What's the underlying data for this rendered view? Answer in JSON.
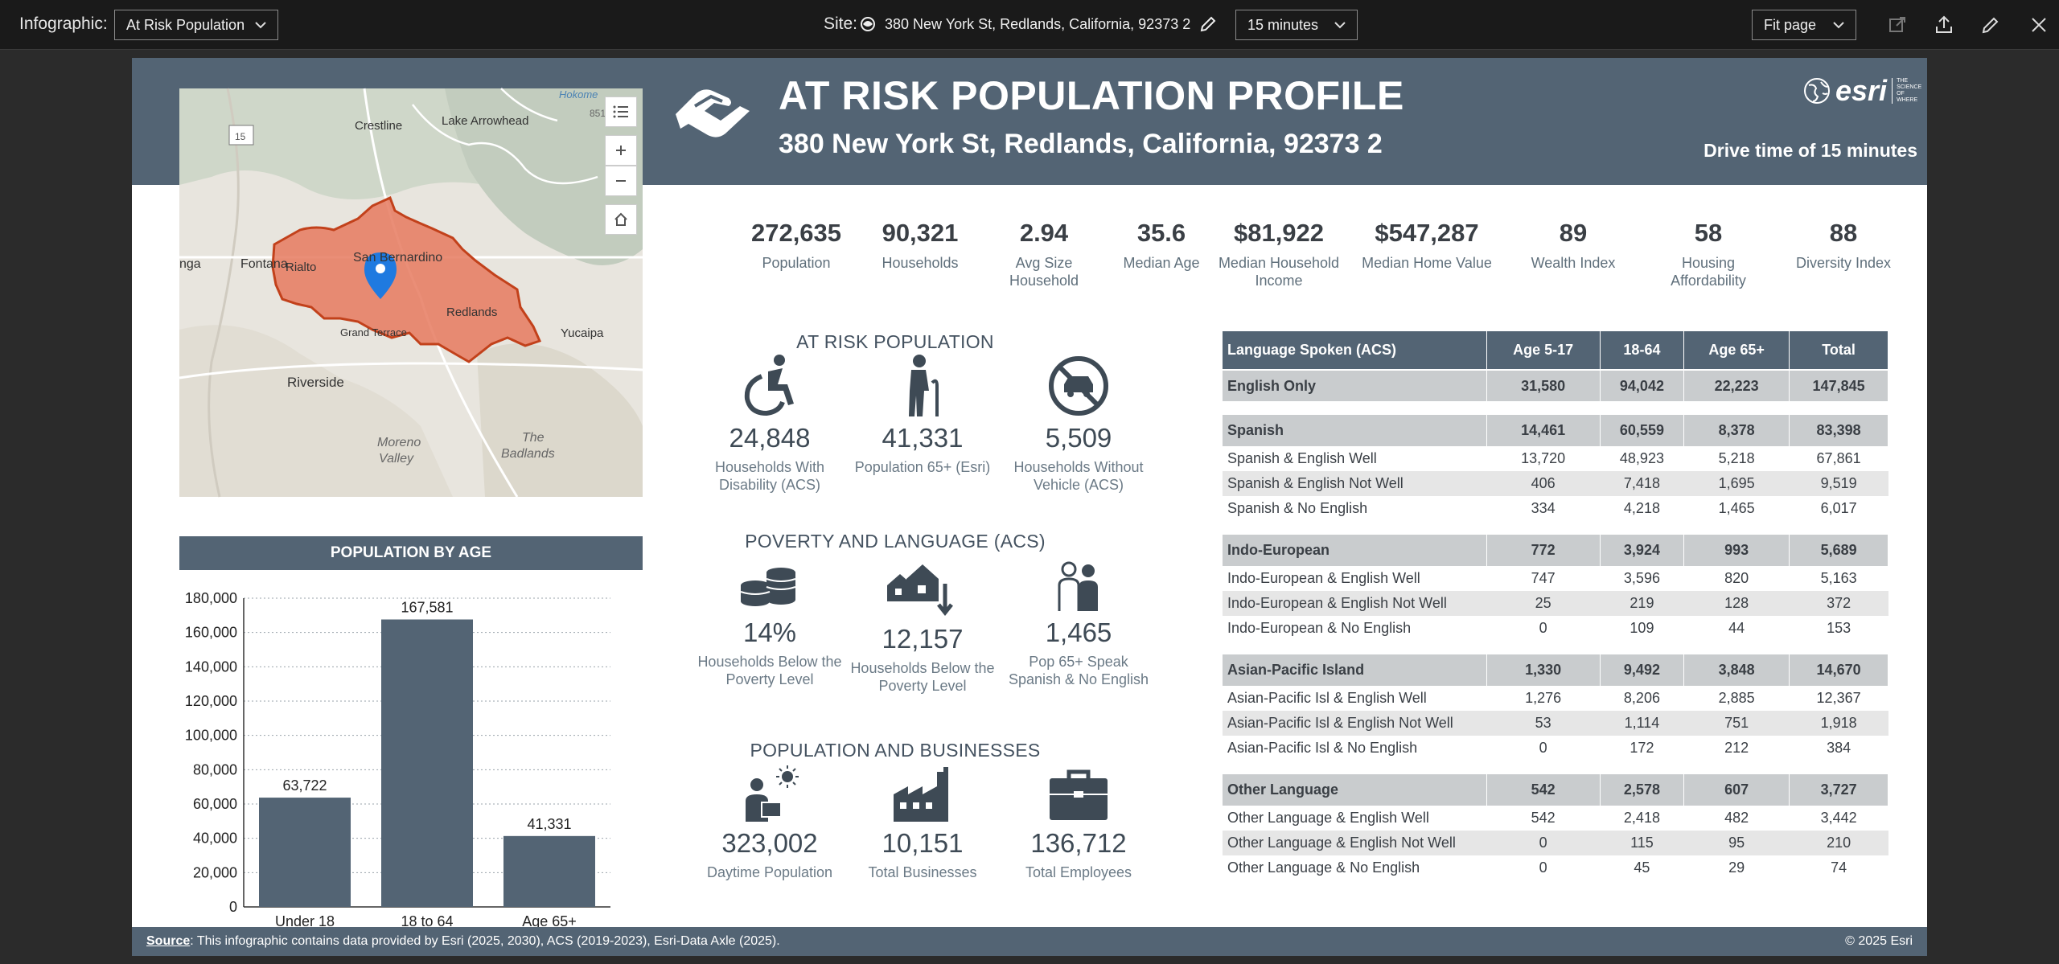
{
  "toolbar": {
    "infographic_label": "Infographic:",
    "infographic_value": "At Risk Population",
    "site_label": "Site:",
    "site_value": "380 New York St, Redlands, California, 92373 2",
    "drive_value": "15 minutes",
    "zoom_value": "Fit page"
  },
  "header": {
    "title": "AT RISK POPULATION PROFILE",
    "address": "380 New York St, Redlands, California, 92373 2",
    "drive_time": "Drive time of 15 minutes",
    "logo_word": "esri",
    "logo_tag": "THE SCIENCE OF WHERE"
  },
  "map": {
    "labels": [
      "Crestline",
      "Lake Arrowhead",
      "Fontana",
      "Rialto",
      "San Bernardino",
      "Redlands",
      "Yucaipa",
      "Grand Terrace",
      "Riverside",
      "Moreno",
      "Valley",
      "The",
      "Badlands",
      "Hokome",
      "851",
      "nga",
      "15"
    ]
  },
  "stats": [
    {
      "value": "272,635",
      "label": "Population"
    },
    {
      "value": "90,321",
      "label": "Households"
    },
    {
      "value": "2.94",
      "label": "Avg Size Household"
    },
    {
      "value": "35.6",
      "label": "Median Age"
    },
    {
      "value": "$81,922",
      "label": "Median Household Income"
    },
    {
      "value": "$547,287",
      "label": "Median Home Value"
    },
    {
      "value": "89",
      "label": "Wealth Index"
    },
    {
      "value": "58",
      "label": "Housing Affordability"
    },
    {
      "value": "88",
      "label": "Diversity Index"
    }
  ],
  "at_risk": {
    "title": "AT RISK POPULATION",
    "items": [
      {
        "value": "24,848",
        "label": "Households With Disability (ACS)",
        "icon": "wheelchair-icon"
      },
      {
        "value": "41,331",
        "label": "Population 65+ (Esri)",
        "icon": "elderly-person-icon"
      },
      {
        "value": "5,509",
        "label": "Households Without Vehicle (ACS)",
        "icon": "no-car-icon"
      }
    ]
  },
  "poverty": {
    "title": "POVERTY AND LANGUAGE (ACS)",
    "items": [
      {
        "value": "14%",
        "label": "Households Below the Poverty Level",
        "icon": "coins-icon"
      },
      {
        "value": "12,157",
        "label": "Households Below the Poverty Level",
        "icon": "houses-down-icon"
      },
      {
        "value": "1,465",
        "label": "Pop 65+ Speak Spanish & No English",
        "icon": "people-icon"
      }
    ]
  },
  "businesses": {
    "title": "POPULATION AND BUSINESSES",
    "items": [
      {
        "value": "323,002",
        "label": "Daytime Population",
        "icon": "worker-sun-icon"
      },
      {
        "value": "10,151",
        "label": "Total Businesses",
        "icon": "factory-icon"
      },
      {
        "value": "136,712",
        "label": "Total Employees",
        "icon": "briefcase-icon"
      }
    ]
  },
  "chart_data": {
    "type": "bar",
    "title": "POPULATION BY AGE",
    "categories": [
      "Under 18",
      "18 to 64",
      "Age 65+"
    ],
    "values": [
      63722,
      167581,
      41331
    ],
    "value_labels": [
      "63,722",
      "167,581",
      "41,331"
    ],
    "ylim": [
      0,
      180000
    ],
    "yticks": [
      0,
      20000,
      40000,
      60000,
      80000,
      100000,
      120000,
      140000,
      160000,
      180000
    ],
    "ytick_labels": [
      "0",
      "20,000",
      "40,000",
      "60,000",
      "80,000",
      "100,000",
      "120,000",
      "140,000",
      "160,000",
      "180,000"
    ],
    "grid": true,
    "bar_color": "#536474"
  },
  "language_table": {
    "headers": [
      "Language Spoken (ACS)",
      "Age 5-17",
      "18-64",
      "Age 65+",
      "Total"
    ],
    "rows": [
      {
        "kind": "grp",
        "cells": [
          "English Only",
          "31,580",
          "94,042",
          "22,223",
          "147,845"
        ]
      },
      {
        "kind": "gap"
      },
      {
        "kind": "grp",
        "cells": [
          "Spanish",
          "14,461",
          "60,559",
          "8,378",
          "83,398"
        ]
      },
      {
        "kind": "row",
        "cells": [
          "Spanish & English Well",
          "13,720",
          "48,923",
          "5,218",
          "67,861"
        ]
      },
      {
        "kind": "alt",
        "cells": [
          "Spanish & English Not Well",
          "406",
          "7,418",
          "1,695",
          "9,519"
        ]
      },
      {
        "kind": "row",
        "cells": [
          "Spanish & No English",
          "334",
          "4,218",
          "1,465",
          "6,017"
        ]
      },
      {
        "kind": "gap"
      },
      {
        "kind": "grp",
        "cells": [
          "Indo-European",
          "772",
          "3,924",
          "993",
          "5,689"
        ]
      },
      {
        "kind": "row",
        "cells": [
          "Indo-European & English Well",
          "747",
          "3,596",
          "820",
          "5,163"
        ]
      },
      {
        "kind": "alt",
        "cells": [
          "Indo-European & English Not Well",
          "25",
          "219",
          "128",
          "372"
        ]
      },
      {
        "kind": "row",
        "cells": [
          "Indo-European & No English",
          "0",
          "109",
          "44",
          "153"
        ]
      },
      {
        "kind": "gap"
      },
      {
        "kind": "grp",
        "cells": [
          "Asian-Pacific Island",
          "1,330",
          "9,492",
          "3,848",
          "14,670"
        ]
      },
      {
        "kind": "row",
        "cells": [
          "Asian-Pacific Isl & English Well",
          "1,276",
          "8,206",
          "2,885",
          "12,367"
        ]
      },
      {
        "kind": "alt",
        "cells": [
          "Asian-Pacific Isl & English Not Well",
          "53",
          "1,114",
          "751",
          "1,918"
        ]
      },
      {
        "kind": "row",
        "cells": [
          "Asian-Pacific Isl & No English",
          "0",
          "172",
          "212",
          "384"
        ]
      },
      {
        "kind": "gap"
      },
      {
        "kind": "grp",
        "cells": [
          "Other Language",
          "542",
          "2,578",
          "607",
          "3,727"
        ]
      },
      {
        "kind": "row",
        "cells": [
          "Other Language & English Well",
          "542",
          "2,418",
          "482",
          "3,442"
        ]
      },
      {
        "kind": "alt",
        "cells": [
          "Other Language & English Not Well",
          "0",
          "115",
          "95",
          "210"
        ]
      },
      {
        "kind": "row",
        "cells": [
          "Other Language & No English",
          "0",
          "45",
          "29",
          "74"
        ]
      }
    ]
  },
  "footer": {
    "source_label": "Source",
    "source_text": ": This infographic contains data provided by Esri (2025, 2030), ACS (2019-2023), Esri-Data Axle (2025).",
    "copyright": "© 2025 Esri"
  }
}
